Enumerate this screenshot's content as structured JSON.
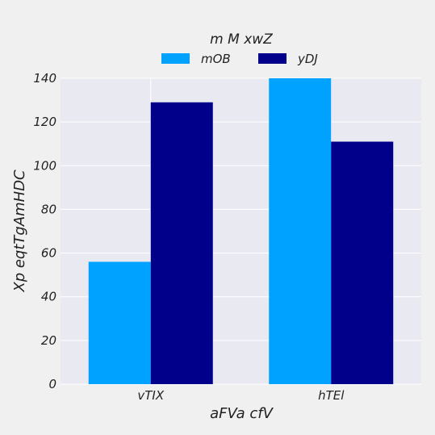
{
  "chart_data": {
    "type": "bar",
    "title": "m M  xwZ",
    "xlabel": "aFVa cfV",
    "ylabel": "Xp eqtTgAmHDC",
    "categories": [
      "vTIX",
      "hTEl"
    ],
    "series": [
      {
        "name": "mOB",
        "values": [
          56,
          140
        ],
        "color": "#00a2ff"
      },
      {
        "name": "yDJ",
        "values": [
          129,
          111
        ],
        "color": "#00008b"
      }
    ],
    "ylim": [
      0,
      140
    ],
    "yticks": [
      0,
      20,
      40,
      60,
      80,
      100,
      120,
      140
    ],
    "grid": true,
    "legend_position": "top-center"
  },
  "colors": {
    "figure_background": "#f0f0f0",
    "plot_background": "#e9e9f1",
    "grid": "#ffffff"
  }
}
